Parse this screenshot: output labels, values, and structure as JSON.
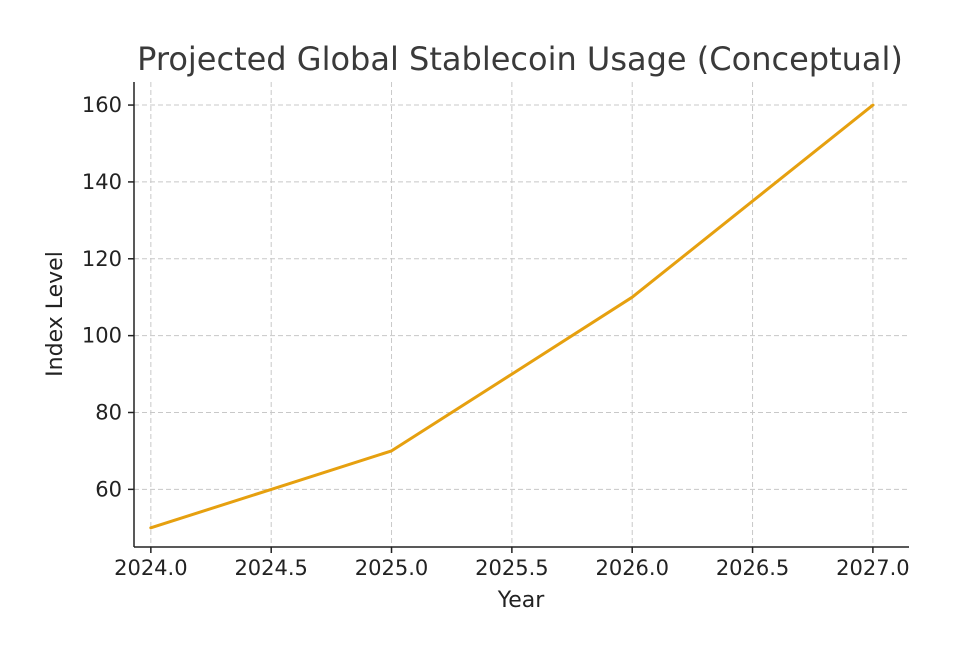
{
  "chart_data": {
    "type": "line",
    "title": "Projected Global Stablecoin Usage (Conceptual)",
    "xlabel": "Year",
    "ylabel": "Index Level",
    "xlim": [
      2023.93,
      2027.15
    ],
    "ylim": [
      45,
      166
    ],
    "xticks": [
      2024.0,
      2024.5,
      2025.0,
      2025.5,
      2026.0,
      2026.5,
      2027.0
    ],
    "xtick_labels": [
      "2024.0",
      "2024.5",
      "2025.0",
      "2025.5",
      "2026.0",
      "2026.5",
      "2027.0"
    ],
    "yticks": [
      60,
      80,
      100,
      120,
      140,
      160
    ],
    "ytick_labels": [
      "60",
      "80",
      "100",
      "120",
      "140",
      "160"
    ],
    "grid": true,
    "series": [
      {
        "color": "#e6a00f",
        "x": [
          2024.0,
          2024.5,
          2025.0,
          2025.5,
          2026.0,
          2026.5,
          2027.0
        ],
        "values": [
          50,
          60,
          70,
          90,
          110,
          135,
          160
        ]
      }
    ]
  }
}
